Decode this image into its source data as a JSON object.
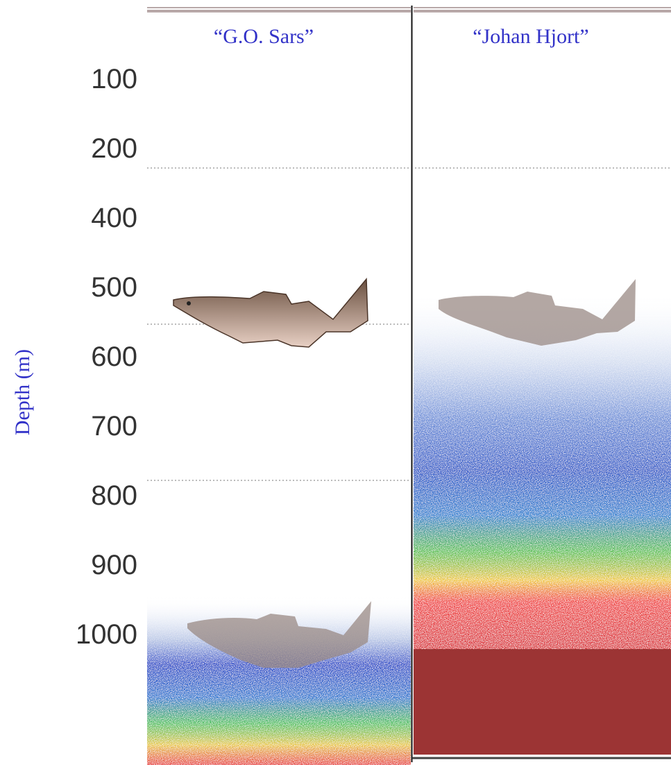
{
  "panels": [
    {
      "title": "“G.O. Sars”"
    },
    {
      "title": "“Johan Hjort”"
    }
  ],
  "axis": {
    "label": "Depth (m)",
    "ticks": [
      100,
      200,
      400,
      500,
      600,
      700,
      800,
      900,
      1000
    ]
  }
}
